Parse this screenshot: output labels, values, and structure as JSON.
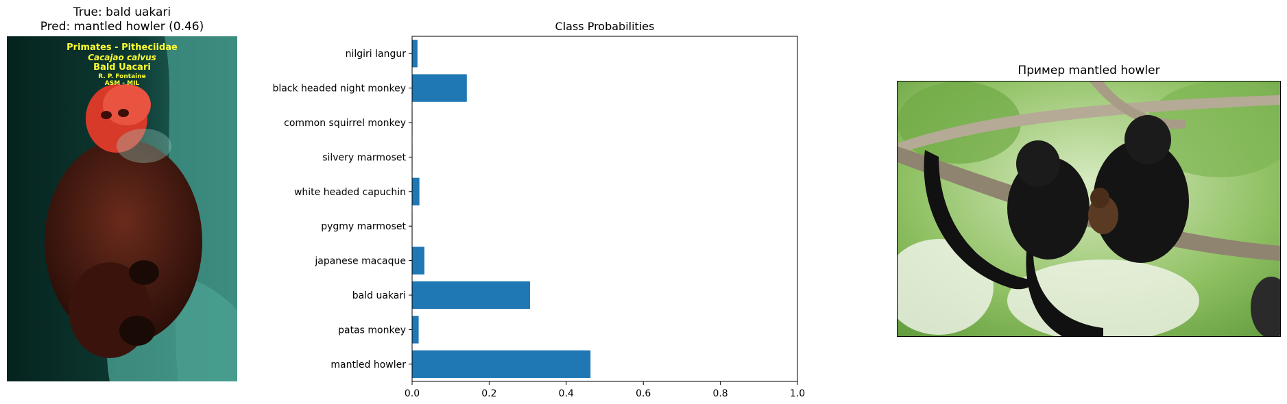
{
  "left_panel": {
    "title_line1": "True: bald uakari",
    "title_line2": "Pred: mantled howler (0.46)",
    "image_text": {
      "line1": "Primates - Pitheciidae",
      "line2": "Cacajao calvus",
      "line3": "Bald Uacari",
      "line4": "R. P. Fontaine",
      "line5": "ASM - MIL"
    }
  },
  "right_panel": {
    "title": "Пример mantled howler"
  },
  "chart_data": {
    "type": "bar",
    "orientation": "horizontal",
    "title": "Class Probabilities",
    "categories": [
      "mantled howler",
      "patas monkey",
      "bald uakari",
      "japanese macaque",
      "pygmy marmoset",
      "white headed capuchin",
      "silvery marmoset",
      "common squirrel monkey",
      "black headed night monkey",
      "nilgiri langur"
    ],
    "values": [
      0.463,
      0.017,
      0.306,
      0.032,
      0.001,
      0.019,
      0.001,
      0.001,
      0.142,
      0.014
    ],
    "xlim": [
      0,
      1.0
    ],
    "xticks": [
      "0.0",
      "0.2",
      "0.4",
      "0.6",
      "0.8",
      "1.0"
    ],
    "bar_color": "#1f77b4",
    "grid": false
  }
}
